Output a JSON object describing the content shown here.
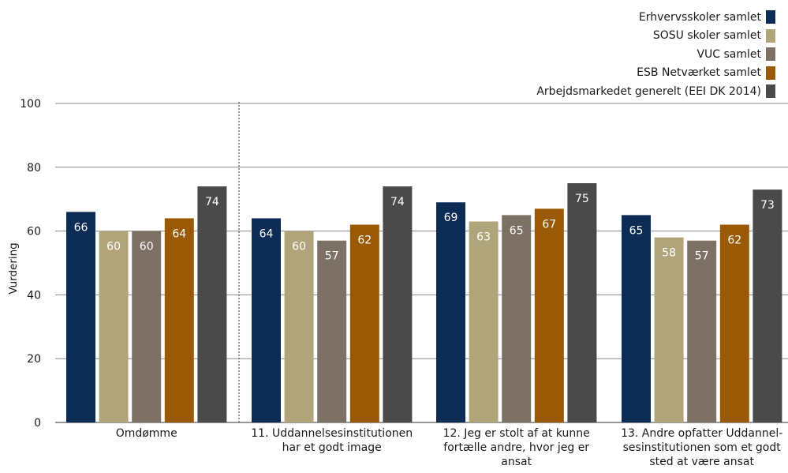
{
  "chart_data": {
    "type": "bar",
    "categories": [
      [
        "Omdømme"
      ],
      [
        "11. Uddannelsesinstitutionen",
        "har et godt image"
      ],
      [
        "12. Jeg er stolt af at kunne",
        "fortælle andre, hvor jeg er",
        "ansat"
      ],
      [
        "13. Andre opfatter Uddannel-",
        "sesinstitutionen som et godt",
        "sted at være ansat"
      ]
    ],
    "series": [
      {
        "name": "Erhvervsskoler samlet",
        "color": "#0d2c55",
        "values": [
          66,
          64,
          69,
          65
        ]
      },
      {
        "name": "SOSU skoler samlet",
        "color": "#b0a57a",
        "values": [
          60,
          60,
          63,
          58
        ]
      },
      {
        "name": "VUC samlet",
        "color": "#7d7064",
        "values": [
          60,
          57,
          65,
          57
        ]
      },
      {
        "name": "ESB Netværket samlet",
        "color": "#9a5a05",
        "values": [
          64,
          62,
          67,
          62
        ]
      },
      {
        "name": "Arbejdsmarkedet generelt (EEI DK 2014)",
        "color": "#4a4a4a",
        "values": [
          74,
          74,
          75,
          73
        ]
      }
    ],
    "xlabel": "",
    "ylabel": "Vurdering",
    "ylim": [
      0,
      100
    ],
    "yticks": [
      0,
      20,
      40,
      60,
      80,
      100
    ],
    "grid": true,
    "legend": "top-right",
    "separator_after_category": 1
  }
}
